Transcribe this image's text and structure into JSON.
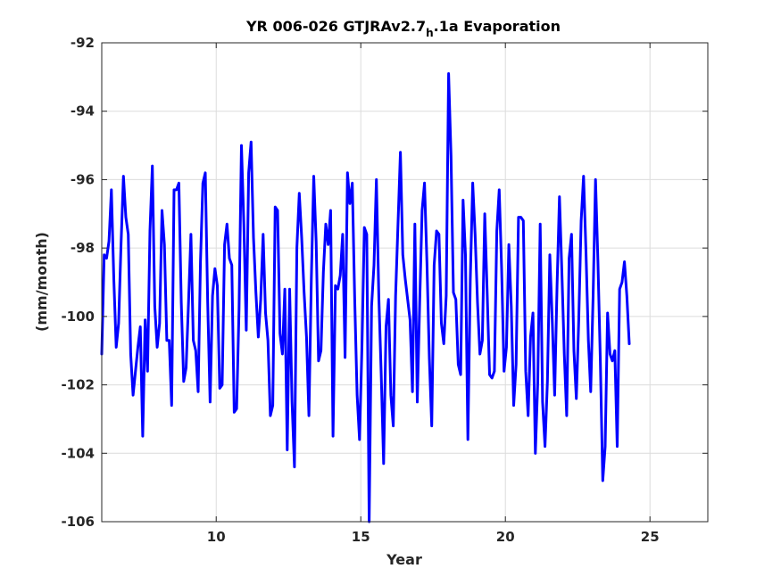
{
  "chart_data": {
    "type": "line",
    "title": "YR 006-026 GTJRAv2.7",
    "title_subscript": "h",
    "title_suffix": ".1a Evaporation",
    "xlabel": "Year",
    "ylabel": "(mm/month)",
    "xlim": [
      6.042,
      27.0
    ],
    "ylim": [
      -106,
      -92
    ],
    "xticks": [
      10,
      15,
      20,
      25
    ],
    "yticks": [
      -106,
      -104,
      -102,
      -100,
      -98,
      -96,
      -94,
      -92
    ],
    "grid": true,
    "line_color": "#0000ff",
    "series": [
      {
        "x_start": 6.042,
        "x_step": 0.0833,
        "values": [
          -101.1,
          -98.2,
          -98.3,
          -97.8,
          -96.3,
          -98.9,
          -100.9,
          -100.2,
          -97.9,
          -95.9,
          -97.1,
          -97.6,
          -101.1,
          -102.3,
          -101.6,
          -100.9,
          -100.3,
          -103.5,
          -100.1,
          -101.6,
          -97.5,
          -95.6,
          -99.7,
          -100.9,
          -100.2,
          -96.9,
          -97.9,
          -100.7,
          -100.7,
          -102.6,
          -96.3,
          -96.3,
          -96.1,
          -99.6,
          -101.9,
          -101.5,
          -99.6,
          -97.6,
          -100.7,
          -101.0,
          -102.2,
          -98.4,
          -96.1,
          -95.8,
          -99.6,
          -102.5,
          -99.4,
          -98.6,
          -99.1,
          -102.1,
          -102.0,
          -97.9,
          -97.3,
          -98.3,
          -98.5,
          -102.8,
          -102.7,
          -99.8,
          -95.0,
          -97.3,
          -100.4,
          -95.8,
          -94.9,
          -97.7,
          -99.3,
          -100.6,
          -99.5,
          -97.6,
          -99.9,
          -100.7,
          -102.9,
          -102.6,
          -96.8,
          -96.9,
          -100.5,
          -101.1,
          -99.2,
          -103.9,
          -99.2,
          -102.5,
          -104.4,
          -98.0,
          -96.4,
          -97.7,
          -99.3,
          -100.6,
          -102.9,
          -98.9,
          -95.9,
          -97.8,
          -101.3,
          -101.0,
          -98.7,
          -97.3,
          -97.9,
          -96.9,
          -103.5,
          -99.1,
          -99.2,
          -98.8,
          -97.6,
          -101.2,
          -95.8,
          -96.7,
          -96.1,
          -99.5,
          -102.3,
          -103.6,
          -100.9,
          -97.4,
          -97.6,
          -106.0,
          -99.7,
          -98.5,
          -96.0,
          -99.4,
          -101.7,
          -104.3,
          -100.3,
          -99.5,
          -102.3,
          -103.2,
          -99.4,
          -97.3,
          -95.2,
          -98.2,
          -98.9,
          -99.5,
          -100.1,
          -102.2,
          -97.3,
          -102.5,
          -99.6,
          -96.9,
          -96.1,
          -98.4,
          -101.2,
          -103.2,
          -98.5,
          -97.5,
          -97.6,
          -100.2,
          -100.8,
          -99.4,
          -92.9,
          -95.3,
          -99.3,
          -99.5,
          -101.4,
          -101.7,
          -96.6,
          -98.2,
          -103.6,
          -98.9,
          -96.1,
          -97.6,
          -99.6,
          -101.1,
          -100.7,
          -97.0,
          -99.3,
          -101.7,
          -101.8,
          -101.6,
          -97.5,
          -96.3,
          -98.6,
          -101.6,
          -100.9,
          -97.9,
          -99.7,
          -102.6,
          -101.4,
          -97.1,
          -97.1,
          -97.2,
          -101.6,
          -102.9,
          -100.6,
          -99.9,
          -104.0,
          -101.9,
          -97.3,
          -102.5,
          -103.8,
          -101.9,
          -98.2,
          -100.1,
          -102.3,
          -99.1,
          -96.5,
          -98.7,
          -101.1,
          -102.9,
          -98.3,
          -97.6,
          -101.0,
          -102.4,
          -100.1,
          -97.2,
          -95.9,
          -98.1,
          -100.7,
          -102.2,
          -99.4,
          -96.0,
          -98.4,
          -101.3,
          -104.8,
          -103.8,
          -99.9,
          -101.1,
          -101.3,
          -101.0,
          -103.8,
          -99.2,
          -99.0,
          -98.4,
          -99.4,
          -100.8
        ]
      }
    ]
  }
}
